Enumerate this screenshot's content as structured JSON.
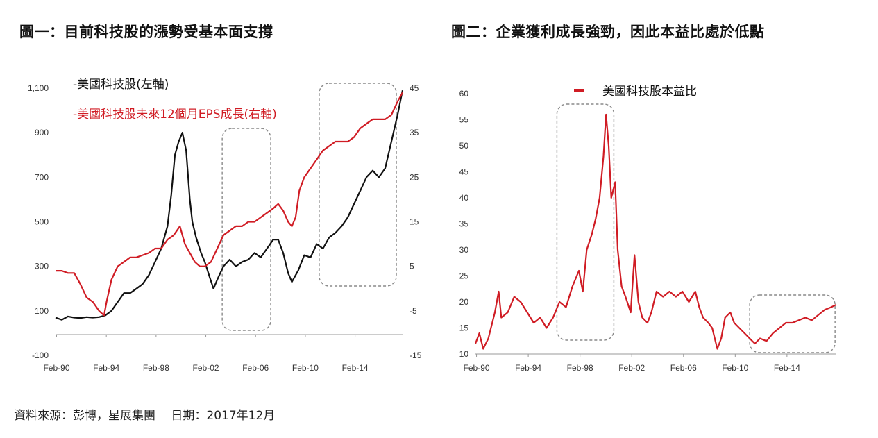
{
  "colors": {
    "tech_index": "#111111",
    "eps": "#d01c24",
    "pe": "#d01c24",
    "box": "#8a8a8a"
  },
  "footer": "資料來源：彭博，星展集團　 日期：2017年12月",
  "chart_data": [
    {
      "type": "line",
      "title": "圖一：目前科技股的漲勢受基本面支撐",
      "x_tick_labels": [
        "Feb-90",
        "Feb-94",
        "Feb-98",
        "Feb-02",
        "Feb-06",
        "Feb-10",
        "Feb-14"
      ],
      "x_range": [
        1990.0,
        2017.9
      ],
      "y_left": {
        "ticks": [
          "1,100",
          "900",
          "700",
          "500",
          "300",
          "100",
          "-100"
        ],
        "range": [
          -100,
          1100
        ]
      },
      "y_right": {
        "ticks": [
          "45",
          "35",
          "25",
          "15",
          "5",
          "-5",
          "-15"
        ],
        "range": [
          -15,
          45
        ]
      },
      "series": [
        {
          "name": "-美國科技股(左軸)",
          "axis": "left",
          "color": "#111111",
          "points": [
            [
              1990.0,
              70
            ],
            [
              1990.5,
              60
            ],
            [
              1991.0,
              75
            ],
            [
              1991.5,
              70
            ],
            [
              1992.0,
              68
            ],
            [
              1992.5,
              72
            ],
            [
              1993.0,
              70
            ],
            [
              1993.5,
              72
            ],
            [
              1994.0,
              80
            ],
            [
              1994.5,
              100
            ],
            [
              1995.0,
              140
            ],
            [
              1995.5,
              180
            ],
            [
              1996.0,
              180
            ],
            [
              1996.5,
              200
            ],
            [
              1997.0,
              220
            ],
            [
              1997.5,
              260
            ],
            [
              1998.0,
              320
            ],
            [
              1998.5,
              380
            ],
            [
              1999.0,
              480
            ],
            [
              1999.3,
              620
            ],
            [
              1999.6,
              800
            ],
            [
              1999.9,
              860
            ],
            [
              2000.2,
              900
            ],
            [
              2000.5,
              820
            ],
            [
              2000.8,
              600
            ],
            [
              2001.0,
              500
            ],
            [
              2001.3,
              430
            ],
            [
              2001.7,
              360
            ],
            [
              2002.0,
              320
            ],
            [
              2002.4,
              250
            ],
            [
              2002.7,
              200
            ],
            [
              2003.0,
              240
            ],
            [
              2003.5,
              300
            ],
            [
              2004.0,
              330
            ],
            [
              2004.5,
              300
            ],
            [
              2005.0,
              320
            ],
            [
              2005.5,
              330
            ],
            [
              2006.0,
              360
            ],
            [
              2006.5,
              340
            ],
            [
              2007.0,
              380
            ],
            [
              2007.5,
              420
            ],
            [
              2007.9,
              420
            ],
            [
              2008.3,
              360
            ],
            [
              2008.7,
              270
            ],
            [
              2009.0,
              230
            ],
            [
              2009.5,
              280
            ],
            [
              2010.0,
              350
            ],
            [
              2010.5,
              340
            ],
            [
              2011.0,
              400
            ],
            [
              2011.5,
              380
            ],
            [
              2012.0,
              430
            ],
            [
              2012.5,
              450
            ],
            [
              2013.0,
              480
            ],
            [
              2013.5,
              520
            ],
            [
              2014.0,
              580
            ],
            [
              2014.5,
              640
            ],
            [
              2015.0,
              700
            ],
            [
              2015.5,
              730
            ],
            [
              2016.0,
              700
            ],
            [
              2016.5,
              740
            ],
            [
              2017.0,
              860
            ],
            [
              2017.5,
              980
            ],
            [
              2017.9,
              1090
            ]
          ]
        },
        {
          "name": "-美國科技股未來12個月EPS成長(右軸)",
          "axis": "right",
          "color": "#d01c24",
          "points": [
            [
              1990.0,
              4
            ],
            [
              1990.5,
              4
            ],
            [
              1991.0,
              3.5
            ],
            [
              1991.5,
              3.5
            ],
            [
              1992.0,
              1
            ],
            [
              1992.5,
              -2
            ],
            [
              1993.0,
              -3
            ],
            [
              1993.5,
              -5
            ],
            [
              1993.9,
              -6
            ],
            [
              1994.1,
              -3
            ],
            [
              1994.5,
              2
            ],
            [
              1995.0,
              5
            ],
            [
              1995.5,
              6
            ],
            [
              1996.0,
              7
            ],
            [
              1996.5,
              7
            ],
            [
              1997.0,
              7.5
            ],
            [
              1997.5,
              8
            ],
            [
              1998.0,
              9
            ],
            [
              1998.5,
              9
            ],
            [
              1999.0,
              11
            ],
            [
              1999.5,
              12
            ],
            [
              2000.0,
              14
            ],
            [
              2000.4,
              10
            ],
            [
              2000.8,
              8
            ],
            [
              2001.2,
              6
            ],
            [
              2001.6,
              5
            ],
            [
              2002.0,
              5
            ],
            [
              2002.5,
              6
            ],
            [
              2003.0,
              9
            ],
            [
              2003.5,
              12
            ],
            [
              2004.0,
              13
            ],
            [
              2004.5,
              14
            ],
            [
              2005.0,
              14
            ],
            [
              2005.5,
              15
            ],
            [
              2006.0,
              15
            ],
            [
              2006.5,
              16
            ],
            [
              2007.0,
              17
            ],
            [
              2007.5,
              18
            ],
            [
              2007.9,
              19
            ],
            [
              2008.3,
              17.5
            ],
            [
              2008.7,
              15
            ],
            [
              2009.0,
              14
            ],
            [
              2009.3,
              16
            ],
            [
              2009.6,
              22
            ],
            [
              2010.0,
              25
            ],
            [
              2010.5,
              27
            ],
            [
              2011.0,
              29
            ],
            [
              2011.5,
              31
            ],
            [
              2012.0,
              32
            ],
            [
              2012.5,
              33
            ],
            [
              2013.0,
              33
            ],
            [
              2013.5,
              33
            ],
            [
              2014.0,
              34
            ],
            [
              2014.5,
              36
            ],
            [
              2015.0,
              37
            ],
            [
              2015.5,
              38
            ],
            [
              2016.0,
              38
            ],
            [
              2016.5,
              38
            ],
            [
              2017.0,
              39
            ],
            [
              2017.5,
              42
            ],
            [
              2017.9,
              44
            ]
          ]
        }
      ],
      "highlight_periods": [
        [
          2003.4,
          2007.3
        ],
        [
          2011.2,
          2017.4
        ]
      ]
    },
    {
      "type": "line",
      "title": "圖二：企業獲利成長強勁，因此本益比處於低點",
      "x_tick_labels": [
        "Feb-90",
        "Feb-94",
        "Feb-98",
        "Feb-02",
        "Feb-06",
        "Feb-10",
        "Feb-14"
      ],
      "x_range": [
        1990.0,
        2017.9
      ],
      "y_left": {
        "ticks": [
          "60",
          "55",
          "50",
          "45",
          "40",
          "35",
          "30",
          "25",
          "20",
          "15",
          "10"
        ],
        "range": [
          10,
          60
        ]
      },
      "series": [
        {
          "name": "美國科技股本益比",
          "color": "#d01c24",
          "points": [
            [
              1990.0,
              12
            ],
            [
              1990.3,
              14
            ],
            [
              1990.6,
              11
            ],
            [
              1991.0,
              13
            ],
            [
              1991.5,
              18
            ],
            [
              1991.8,
              22
            ],
            [
              1992.0,
              17
            ],
            [
              1992.5,
              18
            ],
            [
              1993.0,
              21
            ],
            [
              1993.5,
              20
            ],
            [
              1994.0,
              18
            ],
            [
              1994.5,
              16
            ],
            [
              1995.0,
              17
            ],
            [
              1995.5,
              15
            ],
            [
              1996.0,
              17
            ],
            [
              1996.5,
              20
            ],
            [
              1997.0,
              19
            ],
            [
              1997.5,
              23
            ],
            [
              1998.0,
              26
            ],
            [
              1998.3,
              22
            ],
            [
              1998.6,
              30
            ],
            [
              1999.0,
              33
            ],
            [
              1999.3,
              36
            ],
            [
              1999.6,
              40
            ],
            [
              1999.9,
              48
            ],
            [
              2000.1,
              56
            ],
            [
              2000.3,
              50
            ],
            [
              2000.5,
              40
            ],
            [
              2000.8,
              43
            ],
            [
              2001.0,
              30
            ],
            [
              2001.3,
              23
            ],
            [
              2001.6,
              21
            ],
            [
              2002.0,
              18
            ],
            [
              2002.3,
              29
            ],
            [
              2002.6,
              20
            ],
            [
              2002.9,
              17
            ],
            [
              2003.3,
              16
            ],
            [
              2003.6,
              18
            ],
            [
              2004.0,
              22
            ],
            [
              2004.5,
              21
            ],
            [
              2005.0,
              22
            ],
            [
              2005.5,
              21
            ],
            [
              2006.0,
              22
            ],
            [
              2006.5,
              20
            ],
            [
              2007.0,
              22
            ],
            [
              2007.3,
              19
            ],
            [
              2007.6,
              17
            ],
            [
              2008.0,
              16
            ],
            [
              2008.3,
              15
            ],
            [
              2008.7,
              11
            ],
            [
              2009.0,
              13
            ],
            [
              2009.3,
              17
            ],
            [
              2009.7,
              18
            ],
            [
              2010.0,
              16
            ],
            [
              2010.4,
              15
            ],
            [
              2010.8,
              14
            ],
            [
              2011.2,
              13
            ],
            [
              2011.6,
              12
            ],
            [
              2012.0,
              13
            ],
            [
              2012.5,
              12.5
            ],
            [
              2013.0,
              14
            ],
            [
              2013.5,
              15
            ],
            [
              2014.0,
              16
            ],
            [
              2014.5,
              16
            ],
            [
              2015.0,
              16.5
            ],
            [
              2015.5,
              17
            ],
            [
              2016.0,
              16.5
            ],
            [
              2016.5,
              17.5
            ],
            [
              2017.0,
              18.5
            ],
            [
              2017.5,
              19
            ],
            [
              2017.9,
              19.5
            ]
          ]
        }
      ],
      "highlight_periods": [
        [
          1996.3,
          2000.7
        ],
        [
          2011.2,
          2017.8
        ]
      ]
    }
  ]
}
